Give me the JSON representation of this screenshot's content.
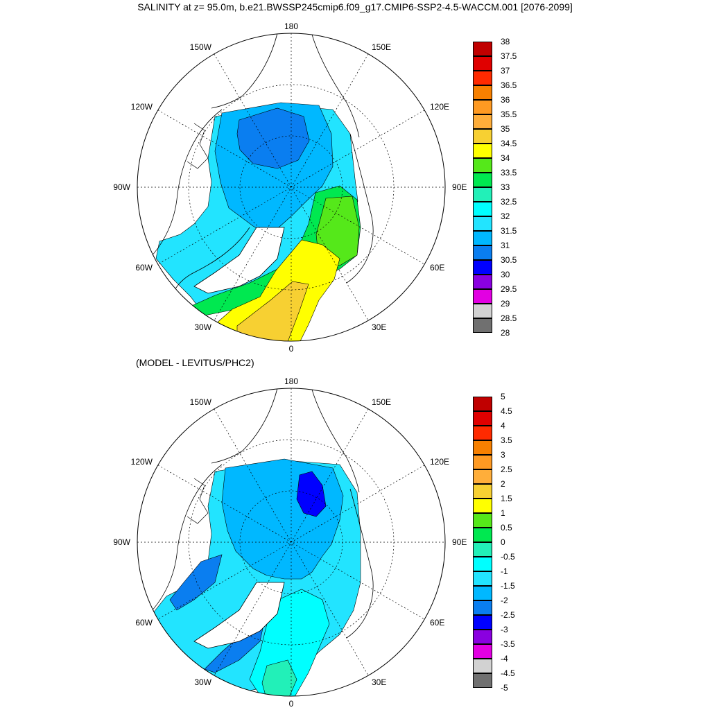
{
  "title": "SALINITY at z=  95.0m, b.e21.BWSSP245cmip6.f09_g17.CMIP6-SSP2-4.5-WACCM.001 [2076-2099]",
  "subtitle": "(MODEL - LEVITUS/PHC2)",
  "map_labels": {
    "north": "180",
    "south": "0",
    "west": "90W",
    "east": "90E",
    "nw1": "150W",
    "nw2": "120W",
    "ne1": "150E",
    "ne2": "120E",
    "sw1": "60W",
    "sw2": "30W",
    "se1": "60E",
    "se2": "30E"
  },
  "colorbar_top": {
    "labels": [
      "38",
      "37.5",
      "37",
      "36.5",
      "36",
      "35.5",
      "35",
      "34.5",
      "34",
      "33.5",
      "33",
      "32.5",
      "32",
      "31.5",
      "31",
      "30.5",
      "30",
      "29.5",
      "29",
      "28.5",
      "28"
    ],
    "colors": [
      "#c00000",
      "#e00000",
      "#ff2a00",
      "#f78000",
      "#ff9a22",
      "#ffae3a",
      "#f7d032",
      "#ffff00",
      "#55e81a",
      "#00e850",
      "#22f0b8",
      "#00ffff",
      "#22e4ff",
      "#00b8ff",
      "#0a7ef0",
      "#0000ff",
      "#8a00e0",
      "#e200e2",
      "#d2d2d2",
      "#707070"
    ]
  },
  "colorbar_bottom": {
    "labels": [
      "5",
      "4.5",
      "4",
      "3.5",
      "3",
      "2.5",
      "2",
      "1.5",
      "1",
      "0.5",
      "0",
      "-0.5",
      "-1",
      "-1.5",
      "-2",
      "-2.5",
      "-3",
      "-3.5",
      "-4",
      "-4.5",
      "-5"
    ],
    "colors": [
      "#c00000",
      "#e00000",
      "#ff2a00",
      "#f78000",
      "#ff9a22",
      "#ffae3a",
      "#f7d032",
      "#ffff00",
      "#55e81a",
      "#00e850",
      "#22f0b8",
      "#00ffff",
      "#22e4ff",
      "#00b8ff",
      "#0a7ef0",
      "#0000ff",
      "#8a00e0",
      "#e200e2",
      "#d2d2d2",
      "#707070"
    ]
  },
  "field_colors": {
    "top_beaufort_core": "#0a7ef0",
    "top_basin": "#00b8ff",
    "top_shelf": "#22e4ff",
    "top_atlantic_inflow": "#00e850",
    "top_barents": "#55e81a",
    "top_nordic": "#ffff00",
    "top_nordic_core": "#f7d032",
    "bottom_central": "#00b8ff",
    "bottom_beaufort_min": "#0000ff",
    "bottom_outer": "#22e4ff",
    "bottom_greenland_band": "#0a7ef0",
    "bottom_nordic": "#00ffff",
    "bottom_norwegian_sea": "#22f0b8"
  }
}
